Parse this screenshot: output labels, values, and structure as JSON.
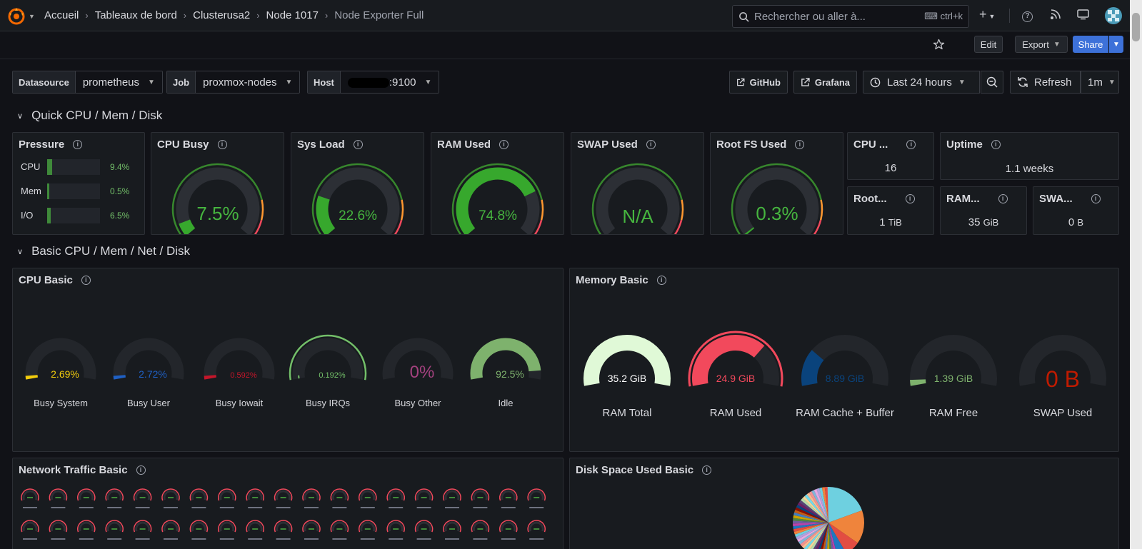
{
  "topbar": {
    "breadcrumbs": [
      "Accueil",
      "Tableaux de bord",
      "Clusterusa2",
      "Node 1017",
      "Node Exporter Full"
    ],
    "search_placeholder": "Rechercher ou aller à...",
    "search_shortcut": "ctrl+k"
  },
  "toolbar": {
    "edit_label": "Edit",
    "export_label": "Export",
    "share_label": "Share"
  },
  "variables": [
    {
      "label": "Datasource",
      "value": "prometheus"
    },
    {
      "label": "Job",
      "value": "proxmox-nodes"
    },
    {
      "label": "Host",
      "value": ":9100"
    }
  ],
  "links": {
    "github": "GitHub",
    "grafana": "Grafana"
  },
  "time": {
    "range": "Last 24 hours",
    "refresh": "Refresh",
    "interval": "1m"
  },
  "rows": {
    "quick": "Quick CPU / Mem / Disk",
    "basic": "Basic CPU / Mem / Net / Disk"
  },
  "pressure": {
    "title": "Pressure",
    "items": [
      {
        "label": "CPU",
        "value": "9.4%",
        "fraction": 0.094
      },
      {
        "label": "Mem",
        "value": "0.5%",
        "fraction": 0.005
      },
      {
        "label": "I/O",
        "value": "6.5%",
        "fraction": 0.065
      }
    ]
  },
  "quick_gauges": [
    {
      "title": "CPU Busy",
      "value": "7.5%",
      "fraction": 0.075
    },
    {
      "title": "Sys Load",
      "value": "22.6%",
      "fraction": 0.226
    },
    {
      "title": "RAM Used",
      "value": "74.8%",
      "fraction": 0.748
    },
    {
      "title": "SWAP Used",
      "value": "N/A",
      "fraction": 0
    },
    {
      "title": "Root FS Used",
      "value": "0.3%",
      "fraction": 0.003
    }
  ],
  "stats": {
    "cpu_cores": {
      "title": "CPU ...",
      "value": "16"
    },
    "uptime": {
      "title": "Uptime",
      "value": "1.1 weeks"
    },
    "rootfs_total": {
      "title": "Root...",
      "value": "1",
      "unit": "TiB"
    },
    "ram_total": {
      "title": "RAM...",
      "value": "35",
      "unit": "GiB"
    },
    "swap_total": {
      "title": "SWA...",
      "value": "0",
      "unit": "B"
    }
  },
  "cpu_basic": {
    "title": "CPU Basic",
    "gauges": [
      {
        "label": "Busy System",
        "value": "2.69%",
        "fraction": 0.0269,
        "color": "#f2cc0c"
      },
      {
        "label": "Busy User",
        "value": "2.72%",
        "fraction": 0.0272,
        "color": "#1f60c4"
      },
      {
        "label": "Busy Iowait",
        "value": "0.592%",
        "fraction": 0.00592,
        "color": "#c4162a"
      },
      {
        "label": "Busy IRQs",
        "value": "0.192%",
        "fraction": 0.00192,
        "color": "#73bf69"
      },
      {
        "label": "Busy Other",
        "value": "0%",
        "fraction": 0,
        "color": "#a3417e"
      },
      {
        "label": "Idle",
        "value": "92.5%",
        "fraction": 0.925,
        "color": "#7eb26d"
      }
    ]
  },
  "memory_basic": {
    "title": "Memory Basic",
    "gauges": [
      {
        "label": "RAM Total",
        "value": "35.2 GiB",
        "fraction": 1,
        "color": "#e0f9d7"
      },
      {
        "label": "RAM Used",
        "value": "24.9 GiB",
        "fraction": 0.707,
        "color": "#f2495c"
      },
      {
        "label": "RAM Cache + Buffer",
        "value": "8.89 GiB",
        "fraction": 0.253,
        "color": "#0a437c"
      },
      {
        "label": "RAM Free",
        "value": "1.39 GiB",
        "fraction": 0.04,
        "color": "#7eb26d"
      },
      {
        "label": "SWAP Used",
        "value": "0 B",
        "fraction": 0,
        "color": "#bf1b00"
      }
    ]
  },
  "network": {
    "title": "Network Traffic Basic"
  },
  "disk": {
    "title": "Disk Space Used Basic"
  },
  "colors": {
    "green": "#37872d",
    "threshold_orange": "#ff9830",
    "threshold_red": "#f2495c",
    "gauge_track": "#2c2f35"
  }
}
